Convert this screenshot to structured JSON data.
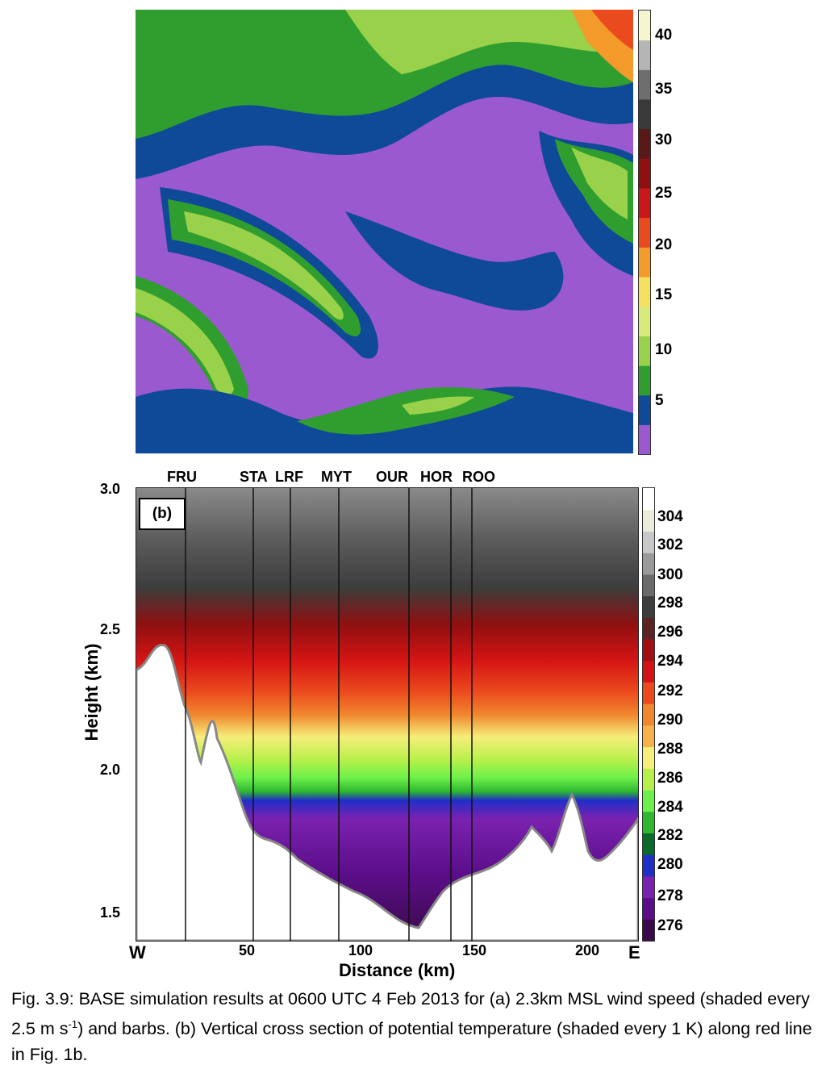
{
  "panel_a": {
    "colorbar_ticks": [
      "40",
      "35",
      "30",
      "25",
      "20",
      "15",
      "10",
      "5"
    ],
    "colors": [
      "#9b59d0",
      "#0e4a98",
      "#2f9e2f",
      "#9ad14a",
      "#d8ea7a",
      "#f6e060",
      "#f39a2a",
      "#ea4b1e",
      "#c81818",
      "#8e1010",
      "#5a1818",
      "#3a3a3a",
      "#6e6e6e",
      "#b5b5b5",
      "#f5f6cf"
    ]
  },
  "panel_b": {
    "label": "(b)",
    "stations": [
      "FRU",
      "STA",
      "LRF",
      "MYT",
      "OUR",
      "HOR",
      "ROO"
    ],
    "y_ticks": [
      "3.0",
      "2.5",
      "2.0",
      "1.5"
    ],
    "x_ticks": [
      "50",
      "100",
      "150",
      "200"
    ],
    "x_end_left": "W",
    "x_end_right": "E",
    "ylabel": "Height (km)",
    "xlabel": "Distance (km)",
    "colorbar_ticks": [
      "304",
      "302",
      "300",
      "298",
      "296",
      "294",
      "292",
      "290",
      "288",
      "286",
      "284",
      "282",
      "280",
      "278",
      "276"
    ],
    "colors": [
      "#3a0a4a",
      "#5c0e8a",
      "#7a22b0",
      "#1f2fc8",
      "#0a6a2a",
      "#2fb82f",
      "#6ef04a",
      "#b8f04a",
      "#f6ee7a",
      "#f5b24a",
      "#f0862e",
      "#ec4a1e",
      "#d41414",
      "#a01010",
      "#5a2424",
      "#3d3d3d",
      "#6a6a6a",
      "#9a9a9a",
      "#c8c8c8",
      "#ececd8",
      "#ffffff"
    ]
  },
  "caption": {
    "part1": "Fig. 3.9: BASE simulation results at 0600 UTC 4 Feb 2013 for (a) 2.3km MSL wind speed (shaded every 2.5 m s",
    "sup": "-1",
    "part2": ") and barbs.  (b) Vertical cross section of potential temperature (shaded every 1 K) along red line in Fig. 1b."
  }
}
